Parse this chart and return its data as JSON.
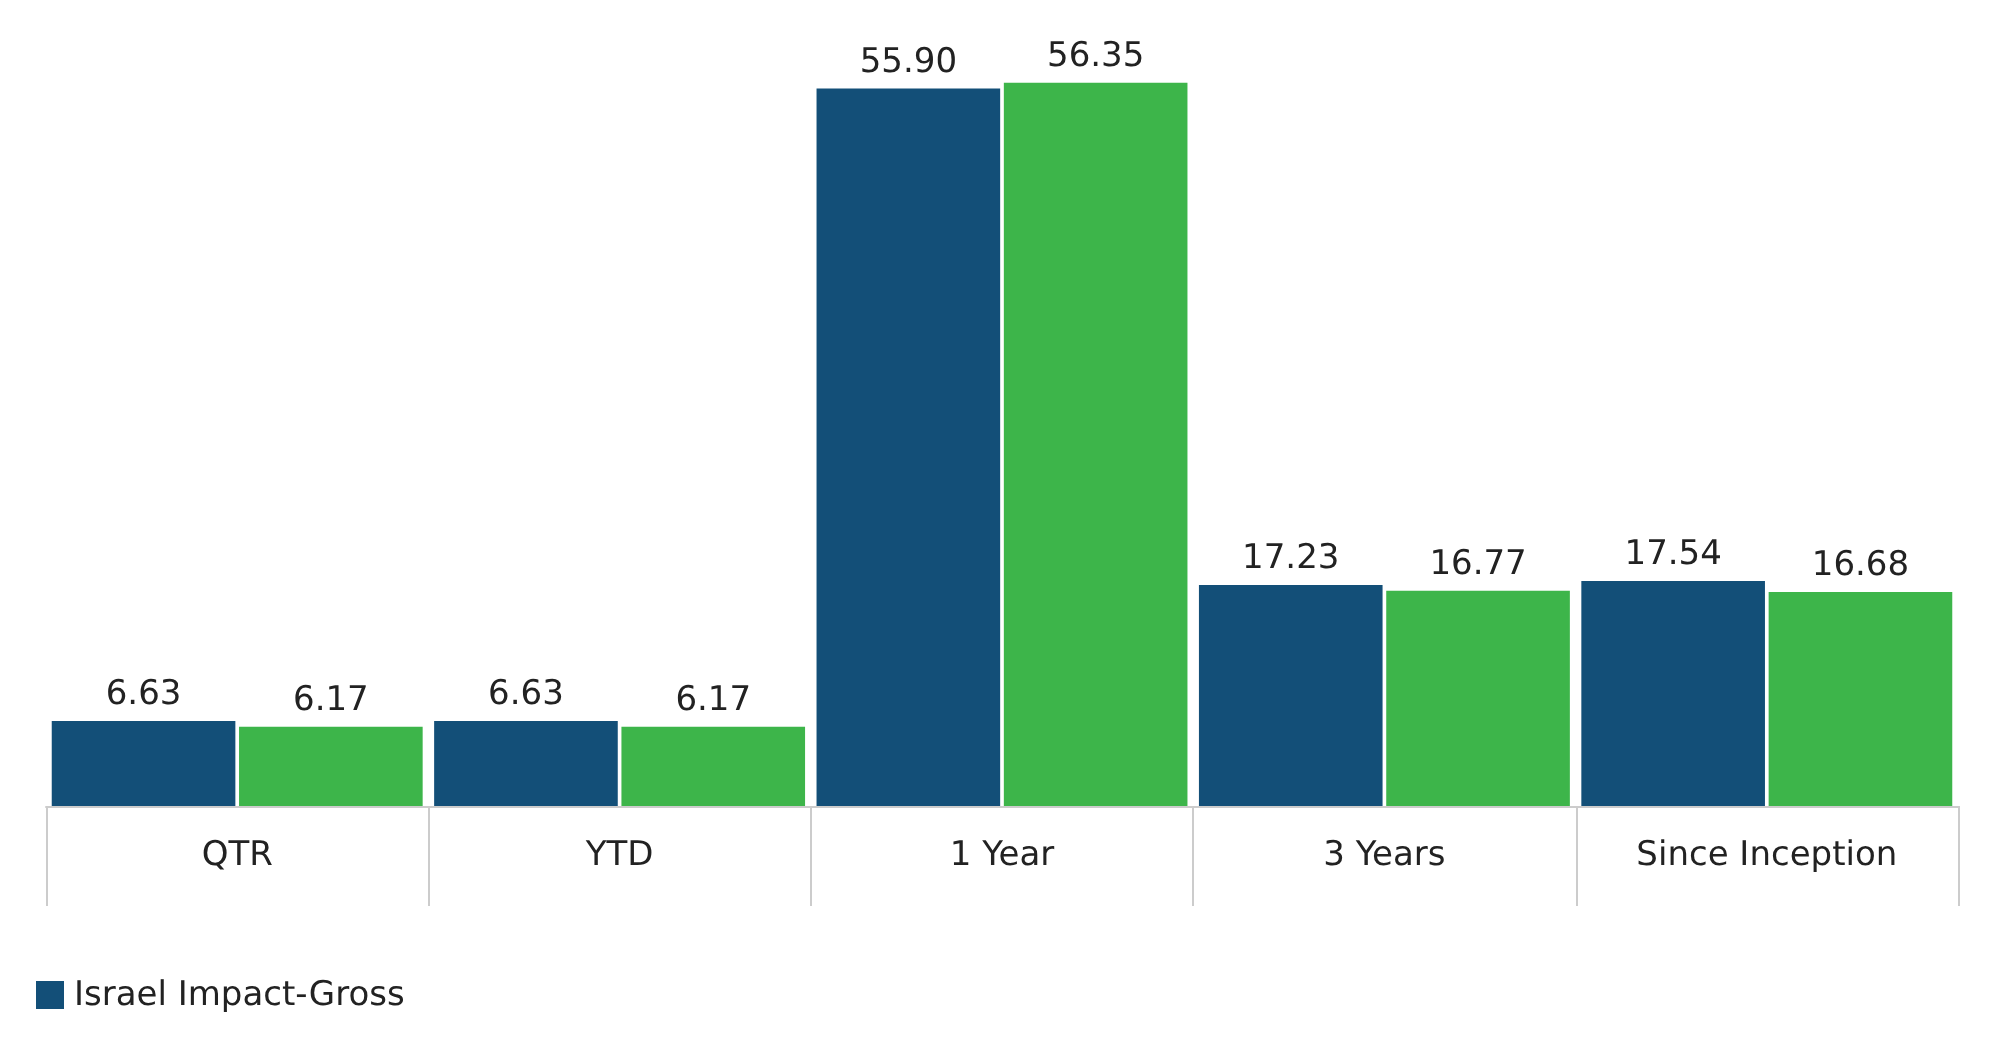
{
  "chart_data": {
    "type": "bar",
    "categories": [
      "QTR",
      "YTD",
      "1 Year",
      "3 Years",
      "Since Inception"
    ],
    "series": [
      {
        "name": "Israel Impact-Gross",
        "color": "#134f78",
        "values": [
          6.63,
          6.63,
          55.9,
          17.23,
          17.54
        ],
        "value_labels": [
          "6.63",
          "6.63",
          "55.90",
          "17.23",
          "17.54"
        ]
      },
      {
        "color": "#3db54a",
        "values": [
          6.17,
          6.17,
          56.35,
          16.77,
          16.68
        ],
        "value_labels": [
          "6.17",
          "6.17",
          "56.35",
          "16.77",
          "16.68"
        ]
      }
    ],
    "legend": "bottom left",
    "tick_labels": "x"
  }
}
